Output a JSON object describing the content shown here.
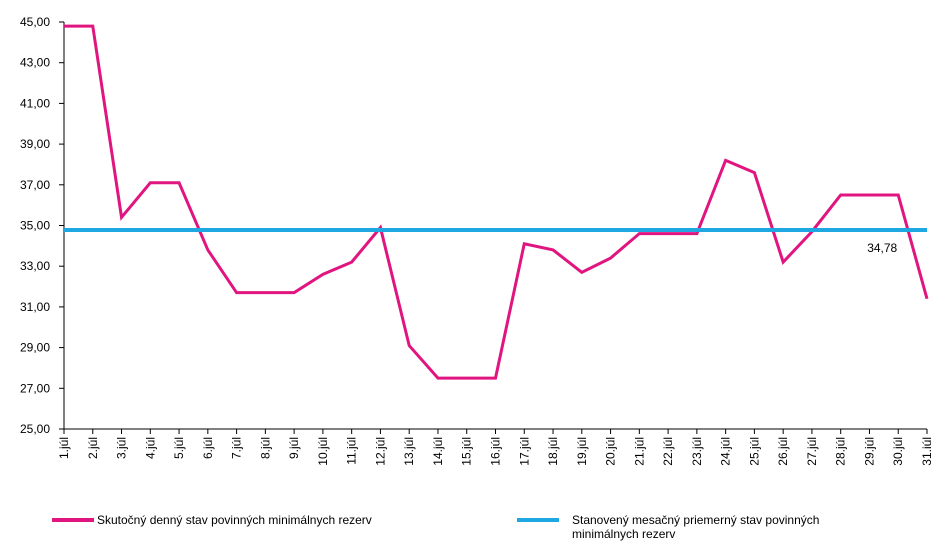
{
  "chart_data": {
    "type": "line",
    "categories": [
      "1.júl",
      "2.júl",
      "3.júl",
      "4.júl",
      "5.júl",
      "6.júl",
      "7.júl",
      "8.júl",
      "9.júl",
      "10.júl",
      "11.júl",
      "12.júl",
      "13.júl",
      "14.júl",
      "15.júl",
      "16.júl",
      "17.júl",
      "18.júl",
      "19.júl",
      "20.júl",
      "21.júl",
      "22.júl",
      "23.júl",
      "24.júl",
      "25.júl",
      "26.júl",
      "27.júl",
      "28.júl",
      "29.júl",
      "30.júl",
      "31.júl"
    ],
    "series": [
      {
        "name": "Skutočný denný stav povinných minimálnych rezerv",
        "color": "#e0157f",
        "values": [
          44.8,
          44.8,
          35.4,
          37.1,
          37.1,
          33.8,
          31.7,
          31.7,
          31.7,
          32.6,
          33.2,
          34.9,
          29.1,
          27.5,
          27.5,
          27.5,
          34.1,
          33.8,
          32.7,
          33.4,
          34.6,
          34.6,
          34.6,
          38.2,
          37.6,
          33.2,
          34.7,
          36.5,
          36.5,
          36.5,
          31.4
        ]
      },
      {
        "name": "Stanovený mesačný priemerný stav povinných minimálnych rezerv",
        "color": "#1ea7e1",
        "values": [
          34.78,
          34.78,
          34.78,
          34.78,
          34.78,
          34.78,
          34.78,
          34.78,
          34.78,
          34.78,
          34.78,
          34.78,
          34.78,
          34.78,
          34.78,
          34.78,
          34.78,
          34.78,
          34.78,
          34.78,
          34.78,
          34.78,
          34.78,
          34.78,
          34.78,
          34.78,
          34.78,
          34.78,
          34.78,
          34.78,
          34.78
        ],
        "value_labels": [
          null,
          null,
          null,
          null,
          null,
          null,
          null,
          null,
          null,
          null,
          null,
          null,
          null,
          null,
          null,
          null,
          null,
          null,
          null,
          null,
          null,
          null,
          null,
          null,
          null,
          null,
          null,
          null,
          null,
          "34,78",
          null
        ]
      }
    ],
    "ylim": [
      25,
      45
    ],
    "yticks": [
      {
        "value": 25,
        "label": "25,00"
      },
      {
        "value": 27,
        "label": "27,00"
      },
      {
        "value": 29,
        "label": "29,00"
      },
      {
        "value": 31,
        "label": "31,00"
      },
      {
        "value": 33,
        "label": "33,00"
      },
      {
        "value": 35,
        "label": "35,00"
      },
      {
        "value": 37,
        "label": "37,00"
      },
      {
        "value": 39,
        "label": "39,00"
      },
      {
        "value": 41,
        "label": "41,00"
      },
      {
        "value": 43,
        "label": "43,00"
      },
      {
        "value": 45,
        "label": "45,00"
      }
    ],
    "grid": false,
    "legend": "bottom"
  }
}
